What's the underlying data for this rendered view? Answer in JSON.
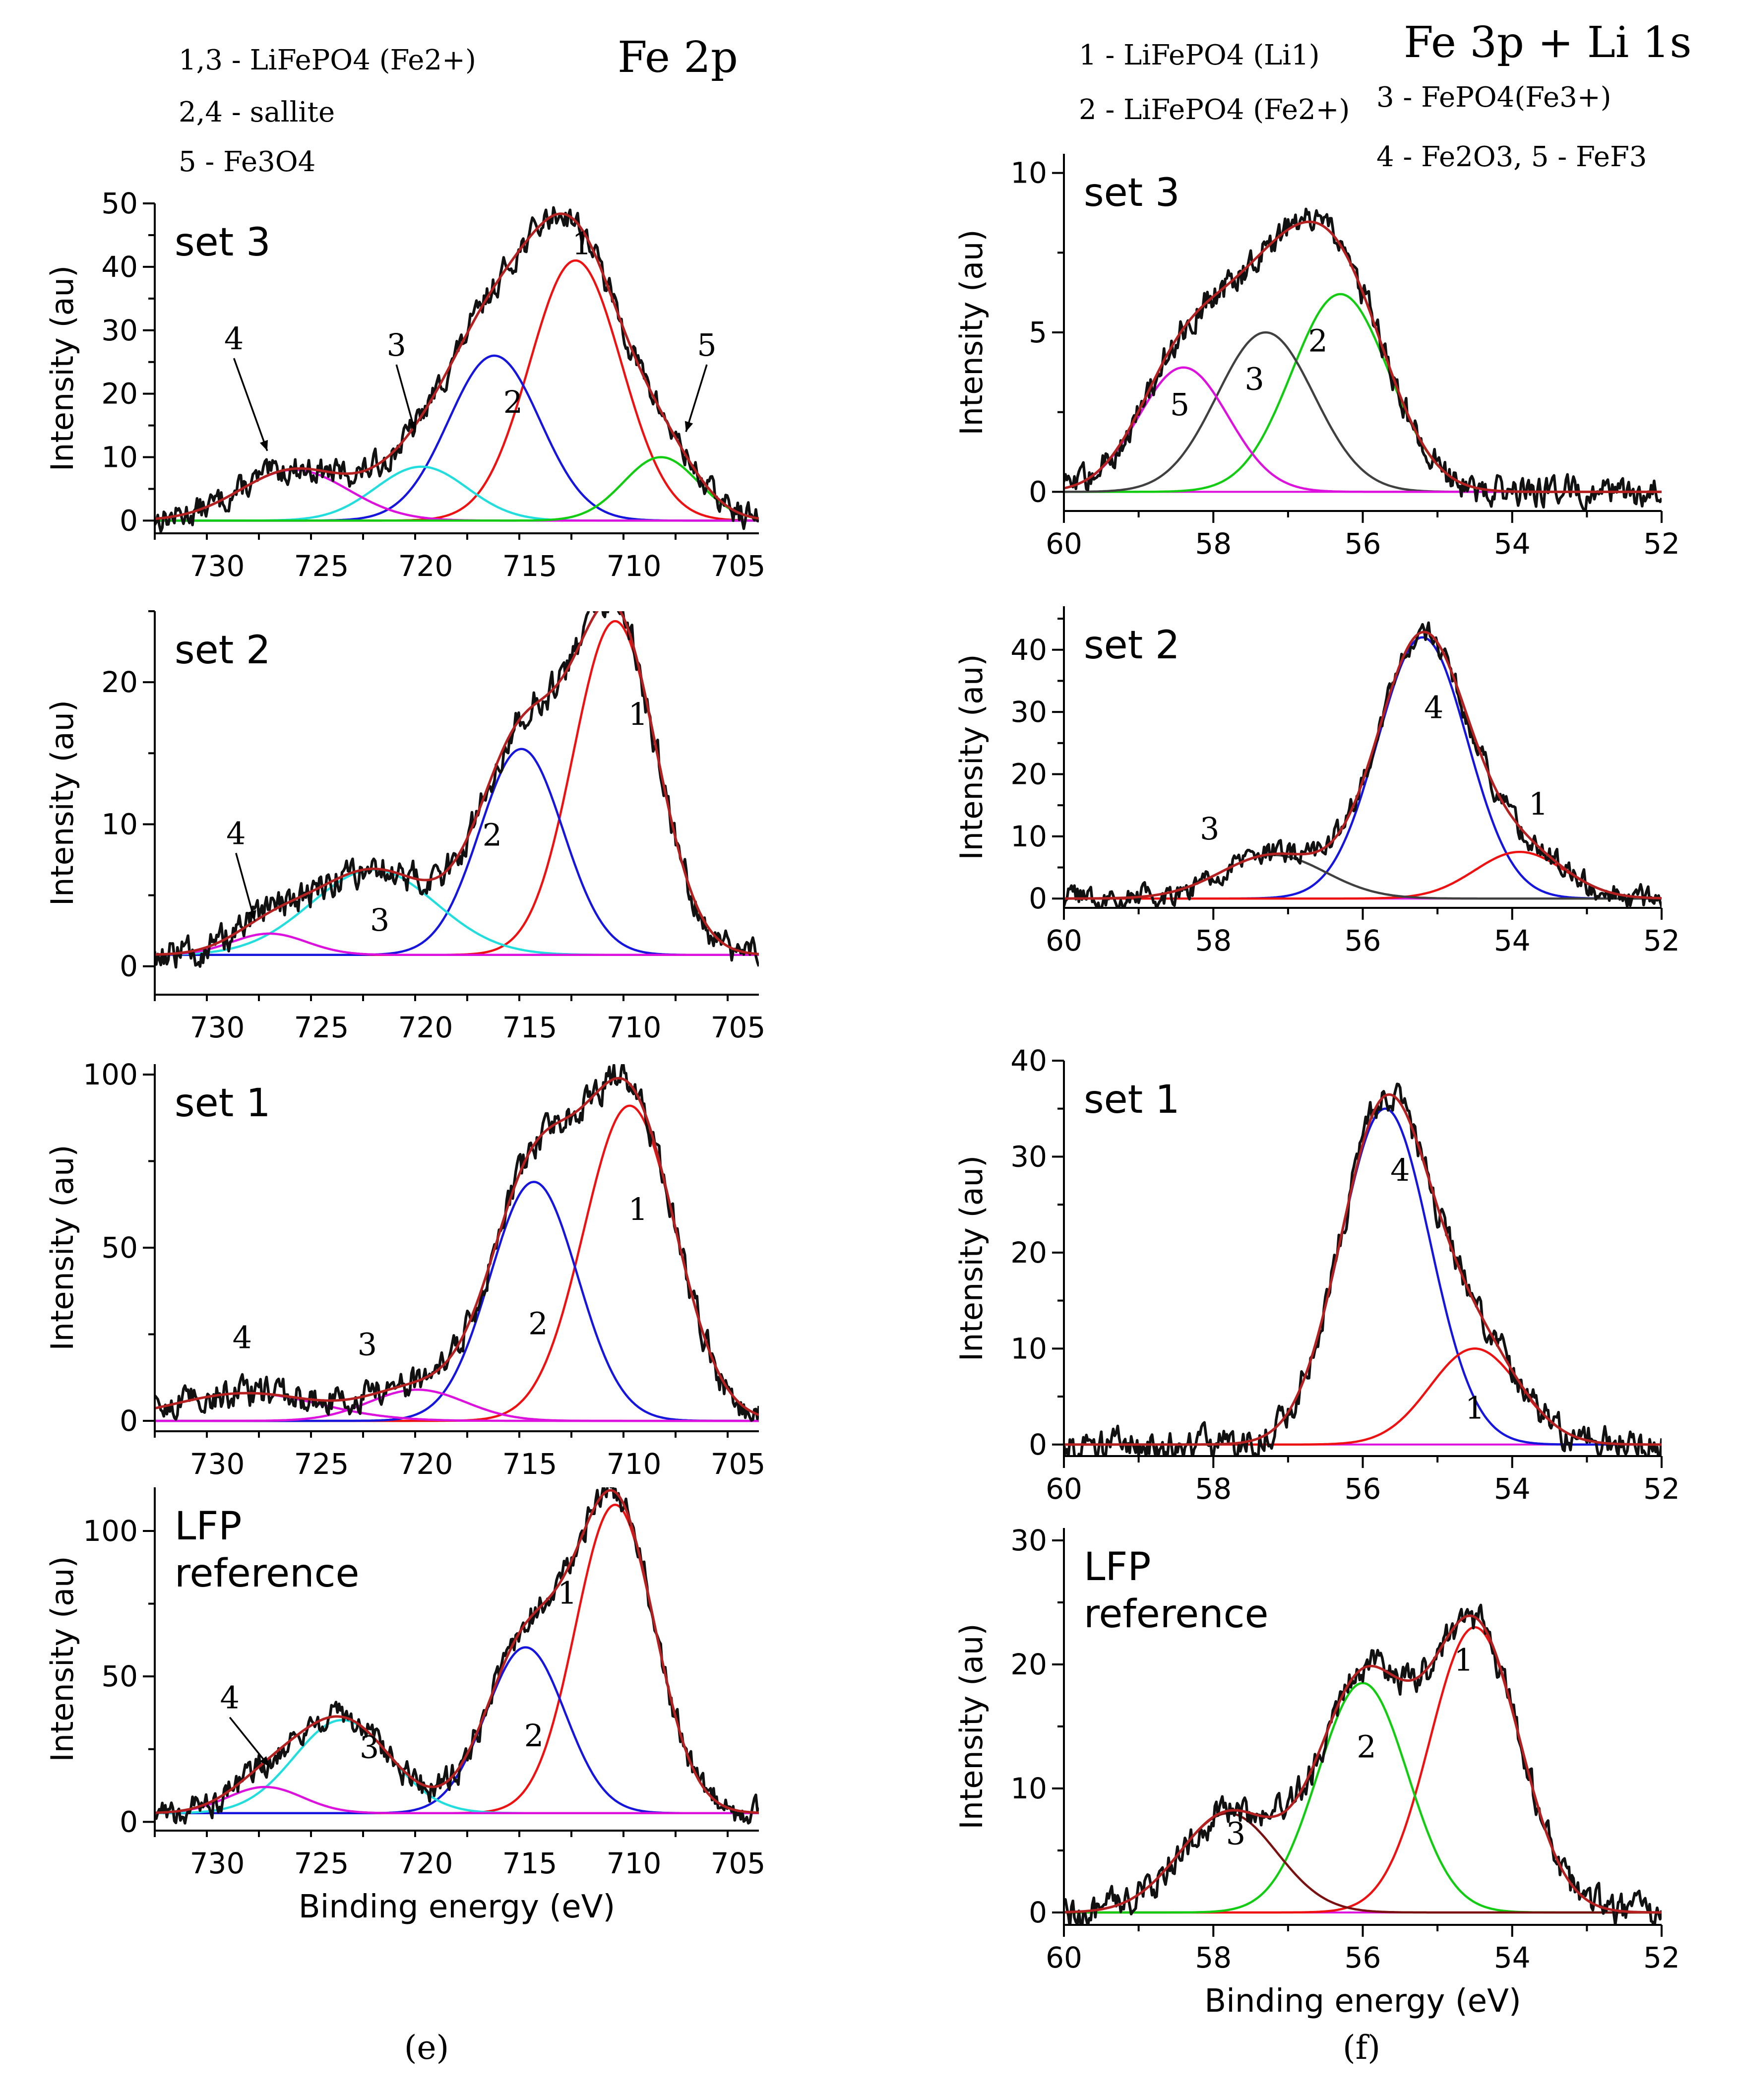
{
  "colors": {
    "c1": "#ee1111",
    "c2": "#1515dd",
    "c3": "#22dddd",
    "c4": "#dd11dd",
    "c5": "#11cc11",
    "grey": "#404040",
    "darkred": "#7a1010",
    "fit": "#b52020",
    "data": "#111111",
    "baseline": "#dd11dd"
  },
  "captions": {
    "left": "(e)",
    "right": "(f)"
  },
  "chart_data": [
    {
      "id": "fe2p-set3",
      "type": "line",
      "title": "Fe 2p",
      "legend": [
        "1,3 - LiFePO4 (Fe2+)",
        "2,4 - sallite",
        "5 - Fe3O4"
      ],
      "set_label": "set 3",
      "xlabel": "",
      "ylabel": "Intensity (au)",
      "xlim": [
        733,
        704
      ],
      "ylim": [
        -2,
        50
      ],
      "xticks": [
        730,
        725,
        720,
        715,
        710,
        705
      ],
      "yticks": [
        0,
        10,
        20,
        30,
        40,
        50
      ],
      "peaks": [
        {
          "name": "1",
          "center": 712.8,
          "height": 41,
          "sigma": 2.2,
          "color": "c1"
        },
        {
          "name": "2",
          "center": 716.7,
          "height": 26,
          "sigma": 2.2,
          "color": "c2"
        },
        {
          "name": "3",
          "center": 720.2,
          "height": 8.5,
          "sigma": 2.2,
          "color": "c3"
        },
        {
          "name": "4",
          "center": 726.3,
          "height": 8,
          "sigma": 2.6,
          "color": "c4"
        },
        {
          "name": "5",
          "center": 708.7,
          "height": 10,
          "sigma": 1.8,
          "color": "c5"
        }
      ],
      "labels": [
        {
          "text": "1",
          "x": 712.5,
          "y": 42
        },
        {
          "text": "2",
          "x": 715.8,
          "y": 17
        },
        {
          "text": "3",
          "x": 721.4,
          "y": 26,
          "arrow": [
            720.5,
            14
          ]
        },
        {
          "text": "4",
          "x": 729.2,
          "y": 27,
          "arrow": [
            727.6,
            11
          ]
        },
        {
          "text": "5",
          "x": 706.5,
          "y": 26,
          "arrow": [
            707.5,
            14
          ]
        }
      ]
    },
    {
      "id": "fe2p-set2",
      "type": "line",
      "set_label": "set 2",
      "xlabel": "",
      "ylabel": "Intensity (au)",
      "xlim": [
        733,
        704
      ],
      "ylim": [
        -2,
        25
      ],
      "xticks": [
        730,
        725,
        720,
        715,
        710,
        705
      ],
      "yticks": [
        0,
        10,
        20
      ],
      "baseline": 0.8,
      "peaks": [
        {
          "name": "1",
          "center": 710.9,
          "height": 23.5,
          "sigma": 2.0,
          "color": "c1"
        },
        {
          "name": "2",
          "center": 715.4,
          "height": 14.5,
          "sigma": 2.0,
          "color": "c2"
        },
        {
          "name": "3",
          "center": 722.5,
          "height": 6.0,
          "sigma": 3.0,
          "color": "c3"
        },
        {
          "name": "4",
          "center": 727.5,
          "height": 1.5,
          "sigma": 1.8,
          "color": "c4"
        }
      ],
      "labels": [
        {
          "text": "1",
          "x": 709.8,
          "y": 17
        },
        {
          "text": "2",
          "x": 716.8,
          "y": 8.5
        },
        {
          "text": "3",
          "x": 722.2,
          "y": 2.5
        },
        {
          "text": "4",
          "x": 729.1,
          "y": 8.6,
          "arrow": [
            728.2,
            3.2
          ]
        }
      ]
    },
    {
      "id": "fe2p-set1",
      "type": "line",
      "set_label": "set 1",
      "xlabel": "",
      "ylabel": "Intensity (au)",
      "xlim": [
        733,
        704
      ],
      "ylim": [
        -3,
        103
      ],
      "xticks": [
        730,
        725,
        720,
        715,
        710,
        705
      ],
      "yticks": [
        0,
        50,
        100
      ],
      "peaks": [
        {
          "name": "1",
          "center": 710.2,
          "height": 91,
          "sigma": 2.2,
          "color": "c1"
        },
        {
          "name": "2",
          "center": 714.8,
          "height": 69,
          "sigma": 2.1,
          "color": "c2"
        },
        {
          "name": "3",
          "center": 720.4,
          "height": 9,
          "sigma": 2.3,
          "color": "c4"
        },
        {
          "name": "4",
          "center": 728.6,
          "height": 8,
          "sigma": 3.5,
          "color": "c4"
        }
      ],
      "labels": [
        {
          "text": "1",
          "x": 709.8,
          "y": 58
        },
        {
          "text": "2",
          "x": 714.6,
          "y": 25
        },
        {
          "text": "3",
          "x": 722.8,
          "y": 19
        },
        {
          "text": "4",
          "x": 728.8,
          "y": 21
        }
      ]
    },
    {
      "id": "fe2p-lfp",
      "type": "line",
      "set_label": "LFP reference",
      "xlabel": "Binding energy (eV)",
      "ylabel": "Intensity (au)",
      "xlim": [
        733,
        704
      ],
      "ylim": [
        -3,
        115
      ],
      "xticks": [
        730,
        725,
        720,
        715,
        710,
        705
      ],
      "yticks": [
        0,
        50,
        100
      ],
      "baseline": 3,
      "peaks": [
        {
          "name": "1",
          "center": 710.9,
          "height": 106,
          "sigma": 1.9,
          "color": "c1"
        },
        {
          "name": "2",
          "center": 715.2,
          "height": 57,
          "sigma": 1.9,
          "color": "c2"
        },
        {
          "name": "3",
          "center": 724.0,
          "height": 32,
          "sigma": 2.3,
          "color": "c3"
        },
        {
          "name": "4",
          "center": 727.7,
          "height": 9,
          "sigma": 1.8,
          "color": "c4"
        }
      ],
      "labels": [
        {
          "text": "1",
          "x": 713.2,
          "y": 75
        },
        {
          "text": "2",
          "x": 714.8,
          "y": 26
        },
        {
          "text": "3",
          "x": 722.7,
          "y": 22
        },
        {
          "text": "4",
          "x": 729.4,
          "y": 39,
          "arrow": [
            727.5,
            19
          ]
        }
      ]
    },
    {
      "id": "fe3p-set3",
      "type": "line",
      "title": "Fe 3p + Li 1s",
      "legend": [
        "1 - LiFePO4 (Li1)",
        "2 - LiFePO4 (Fe2+)",
        "3 - FePO4(Fe3+)",
        "4 - Fe2O3, 5 - FeF3"
      ],
      "set_label": "set 3",
      "xlabel": "",
      "ylabel": "Intensity (au)",
      "xlim": [
        60,
        52
      ],
      "ylim": [
        -0.6,
        10.6
      ],
      "xticks": [
        60,
        58,
        56,
        54,
        52
      ],
      "yticks": [
        0,
        5,
        10
      ],
      "peaks": [
        {
          "name": "2",
          "center": 56.3,
          "height": 6.2,
          "sigma": 0.65,
          "color": "c5"
        },
        {
          "name": "3",
          "center": 57.3,
          "height": 5.0,
          "sigma": 0.65,
          "color": "grey"
        },
        {
          "name": "5",
          "center": 58.4,
          "height": 3.9,
          "sigma": 0.6,
          "color": "c4"
        }
      ],
      "labels": [
        {
          "text": "2",
          "x": 56.6,
          "y": 4.4
        },
        {
          "text": "3",
          "x": 57.45,
          "y": 3.2
        },
        {
          "text": "5",
          "x": 58.45,
          "y": 2.4
        }
      ]
    },
    {
      "id": "fe3p-set2",
      "type": "line",
      "set_label": "set 2",
      "xlabel": "",
      "ylabel": "Intensity (au)",
      "xlim": [
        60,
        52
      ],
      "ylim": [
        -1.5,
        47
      ],
      "xticks": [
        60,
        58,
        56,
        54,
        52
      ],
      "yticks": [
        0,
        10,
        20,
        30,
        40
      ],
      "peaks": [
        {
          "name": "4",
          "center": 55.2,
          "height": 42,
          "sigma": 0.6,
          "color": "c2"
        },
        {
          "name": "1",
          "center": 53.9,
          "height": 7.5,
          "sigma": 0.6,
          "color": "c1"
        },
        {
          "name": "3",
          "center": 57.2,
          "height": 7.0,
          "sigma": 0.7,
          "color": "grey"
        }
      ],
      "labels": [
        {
          "text": "4",
          "x": 55.05,
          "y": 29
        },
        {
          "text": "1",
          "x": 53.65,
          "y": 13.5
        },
        {
          "text": "3",
          "x": 58.05,
          "y": 9.5
        }
      ]
    },
    {
      "id": "fe3p-set1",
      "type": "line",
      "set_label": "set 1",
      "xlabel": "",
      "ylabel": "Intensity (au)",
      "xlim": [
        60,
        52
      ],
      "ylim": [
        -1.2,
        40
      ],
      "xticks": [
        60,
        58,
        56,
        54,
        52
      ],
      "yticks": [
        0,
        10,
        20,
        30,
        40
      ],
      "peaks": [
        {
          "name": "4",
          "center": 55.7,
          "height": 35,
          "sigma": 0.6,
          "color": "c2"
        },
        {
          "name": "1",
          "center": 54.5,
          "height": 10,
          "sigma": 0.6,
          "color": "c1"
        }
      ],
      "labels": [
        {
          "text": "4",
          "x": 55.5,
          "y": 27.5
        },
        {
          "text": "1",
          "x": 54.5,
          "y": 2.7
        }
      ]
    },
    {
      "id": "fe3p-lfp",
      "type": "line",
      "set_label": "LFP reference",
      "xlabel": "Binding energy (eV)",
      "ylabel": "Intensity (au)",
      "xlim": [
        60,
        52
      ],
      "ylim": [
        -1,
        31
      ],
      "xticks": [
        60,
        58,
        56,
        54,
        52
      ],
      "yticks": [
        0,
        10,
        20,
        30
      ],
      "peaks": [
        {
          "name": "1",
          "center": 54.5,
          "height": 23,
          "sigma": 0.6,
          "color": "c1"
        },
        {
          "name": "2",
          "center": 56.0,
          "height": 18.5,
          "sigma": 0.6,
          "color": "c5"
        },
        {
          "name": "3",
          "center": 57.8,
          "height": 8,
          "sigma": 0.65,
          "color": "darkred"
        }
      ],
      "labels": [
        {
          "text": "1",
          "x": 54.65,
          "y": 19.5
        },
        {
          "text": "2",
          "x": 55.95,
          "y": 12.5
        },
        {
          "text": "3",
          "x": 57.7,
          "y": 5.5
        }
      ]
    }
  ]
}
